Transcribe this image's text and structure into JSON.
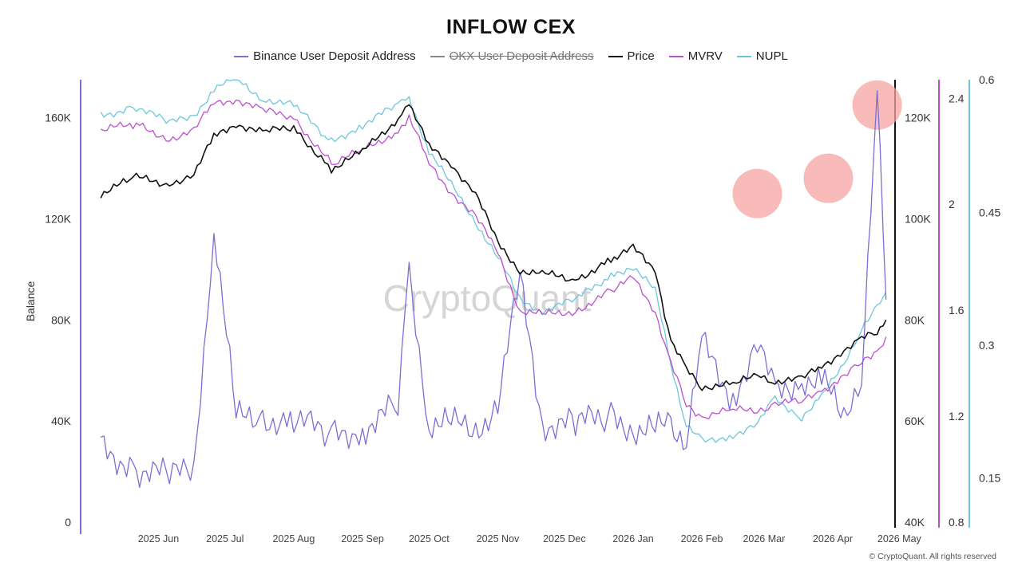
{
  "title": "INFLOW CEX",
  "watermark": "CryptoQuant",
  "copyright": "© CryptoQuant. All rights reserved",
  "colors": {
    "binance": "#7b6fd6",
    "okx": "#888888",
    "price": "#111111",
    "mvrv": "#bd4fd0",
    "nupl": "#6ec6dc",
    "highlight": "#f7a3a3"
  },
  "legend": [
    {
      "key": "binance",
      "label": "Binance User Deposit Address",
      "enabled": true
    },
    {
      "key": "okx",
      "label": "OKX User Deposit Address",
      "enabled": false
    },
    {
      "key": "price",
      "label": "Price",
      "enabled": true
    },
    {
      "key": "mvrv",
      "label": "MVRV",
      "enabled": true
    },
    {
      "key": "nupl",
      "label": "NUPL",
      "enabled": true
    }
  ],
  "chart_data": {
    "type": "line",
    "title": "INFLOW CEX",
    "x_ticks": [
      "2025 Jun",
      "2025 Jul",
      "2025 Aug",
      "2025 Sep",
      "2025 Oct",
      "2025 Nov",
      "2025 Dec",
      "2026 Jan",
      "2026 Feb",
      "2026 Mar",
      "2026 Apr",
      "2026 May"
    ],
    "x": [
      "2025-05-20",
      "2025-06-05",
      "2025-06-20",
      "2025-07-01",
      "2025-07-10",
      "2025-07-20",
      "2025-08-01",
      "2025-08-15",
      "2025-09-01",
      "2025-09-15",
      "2025-10-01",
      "2025-10-06",
      "2025-10-15",
      "2025-10-25",
      "2025-11-05",
      "2025-11-15",
      "2025-11-25",
      "2025-12-05",
      "2025-12-20",
      "2026-01-05",
      "2026-01-15",
      "2026-01-25",
      "2026-02-01",
      "2026-02-08",
      "2026-02-15",
      "2026-03-01",
      "2026-03-12",
      "2026-03-20",
      "2026-04-01",
      "2026-04-10",
      "2026-04-20",
      "2026-04-28",
      "2026-05-05",
      "2026-05-09"
    ],
    "axes": {
      "left": {
        "label": "Balance",
        "ticks": [
          "0",
          "40K",
          "80K",
          "120K",
          "160K"
        ],
        "range": [
          0,
          175000
        ]
      },
      "price": {
        "ticks": [
          "40K",
          "60K",
          "80K",
          "100K",
          "120K"
        ],
        "range": [
          40000,
          127500
        ]
      },
      "mvrv": {
        "ticks": [
          "0.8",
          "1.2",
          "1.6",
          "2",
          "2.4"
        ],
        "range": [
          0.8,
          2.47
        ]
      },
      "nupl": {
        "ticks": [
          "0.15",
          "0.3",
          "0.45",
          "0.6"
        ],
        "range": [
          0.1,
          0.6
        ]
      }
    },
    "series": [
      {
        "name": "Binance User Deposit Address",
        "key": "binance",
        "axis": "left",
        "values": [
          30000,
          22000,
          17000,
          20000,
          118000,
          40000,
          42000,
          40000,
          34000,
          38000,
          45000,
          98000,
          40000,
          38000,
          36000,
          48000,
          95000,
          40000,
          38000,
          42000,
          38000,
          36000,
          37000,
          35000,
          70000,
          50000,
          72000,
          50000,
          58000,
          56000,
          40000,
          60000,
          168000,
          88000
        ]
      },
      {
        "name": "Price",
        "key": "price",
        "axis": "price",
        "values": [
          105000,
          108000,
          107000,
          109000,
          116000,
          119000,
          117000,
          118000,
          110000,
          113000,
          120000,
          123000,
          114000,
          111000,
          105000,
          95000,
          90000,
          89000,
          88000,
          92000,
          94000,
          90000,
          76000,
          70000,
          67000,
          67000,
          69000,
          68000,
          68000,
          71000,
          74000,
          76000,
          78000,
          80000
        ]
      },
      {
        "name": "MVRV",
        "key": "mvrv",
        "axis": "mvrv",
        "values": [
          2.28,
          2.3,
          2.25,
          2.28,
          2.38,
          2.4,
          2.35,
          2.33,
          2.15,
          2.2,
          2.28,
          2.33,
          2.15,
          2.05,
          1.95,
          1.82,
          1.6,
          1.58,
          1.6,
          1.67,
          1.72,
          1.6,
          1.4,
          1.24,
          1.2,
          1.22,
          1.22,
          1.25,
          1.25,
          1.3,
          1.35,
          1.4,
          1.45,
          1.5
        ]
      },
      {
        "name": "NUPL",
        "key": "nupl",
        "axis": "nupl",
        "values": [
          0.56,
          0.57,
          0.55,
          0.56,
          0.59,
          0.6,
          0.58,
          0.57,
          0.53,
          0.55,
          0.57,
          0.58,
          0.52,
          0.48,
          0.44,
          0.4,
          0.35,
          0.34,
          0.35,
          0.38,
          0.39,
          0.36,
          0.28,
          0.21,
          0.19,
          0.2,
          0.21,
          0.24,
          0.22,
          0.24,
          0.28,
          0.32,
          0.34,
          0.36
        ]
      }
    ],
    "highlights": [
      {
        "x": "2026-03-12",
        "value": 130000
      },
      {
        "x": "2026-04-13",
        "value": 136000
      },
      {
        "x": "2026-05-05",
        "value": 165000
      }
    ]
  }
}
